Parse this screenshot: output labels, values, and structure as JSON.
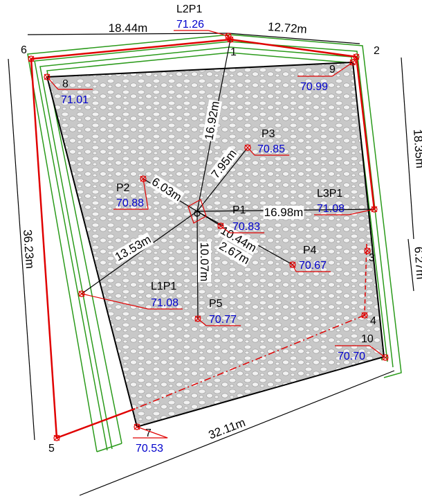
{
  "dimensions": [
    "18.44m",
    "12.72m",
    "18.35m",
    "6.27m",
    "36.23m",
    "32.11m",
    "16.92m",
    "7.95m",
    "6.03m",
    "16.98m",
    "10.44m",
    "2.67m",
    "10.07m",
    "13.53m"
  ],
  "stations": [
    {
      "label": "L2P1",
      "elevation": "71.26"
    },
    {
      "label": "P3",
      "elevation": "70.85"
    },
    {
      "label": "P2",
      "elevation": "70.88"
    },
    {
      "label": "P1",
      "elevation": "70.83"
    },
    {
      "label": "L3P1",
      "elevation": "71.08"
    },
    {
      "label": "P4",
      "elevation": "70.67"
    },
    {
      "label": "L1P1",
      "elevation": "71.08"
    },
    {
      "label": "P5",
      "elevation": "70.77"
    }
  ],
  "corners": [
    {
      "label": "1"
    },
    {
      "label": "2"
    },
    {
      "label": "3"
    },
    {
      "label": "4"
    },
    {
      "label": "5"
    },
    {
      "label": "6"
    },
    {
      "label": "7",
      "elevation": "70.53"
    },
    {
      "label": "8",
      "elevation": "71.01"
    },
    {
      "label": "9",
      "elevation": "70.99"
    },
    {
      "label": "10",
      "elevation": "70.70"
    }
  ]
}
